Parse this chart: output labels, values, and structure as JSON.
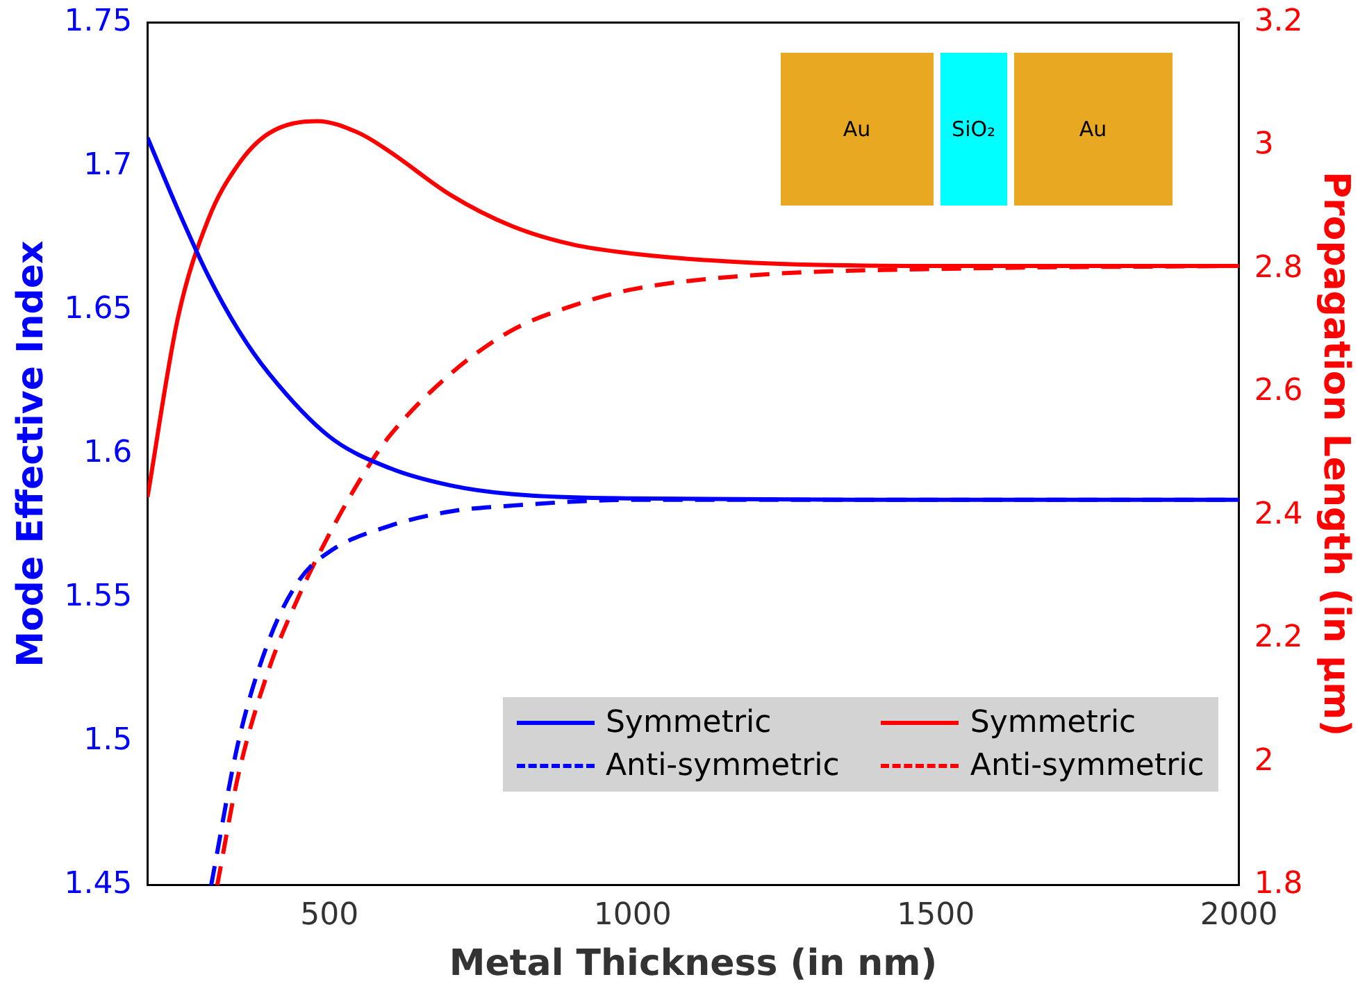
{
  "chart_data": {
    "type": "line",
    "xlabel": "Metal Thickness (in nm)",
    "ylabel": "Mode Effective Index",
    "y2label": "Propagation Length (in μm)",
    "xlim": [
      200,
      2000
    ],
    "xticks": [
      500,
      1000,
      1500,
      2000
    ],
    "ylim": [
      1.45,
      1.75
    ],
    "yticks": [
      1.45,
      1.5,
      1.55,
      1.6,
      1.65,
      1.7,
      1.75
    ],
    "y2lim": [
      1.8,
      3.2
    ],
    "y2ticks": [
      1.8,
      2,
      2.2,
      2.4,
      2.6,
      2.8,
      3,
      3.2
    ],
    "grid": false,
    "legend": "bottom right",
    "marker": "none",
    "annotations": [
      "Au",
      "SiO₂",
      "Au"
    ],
    "series": [
      {
        "name": "Symmetric",
        "color": "#0000ff",
        "line_style": "solid",
        "x": [
          200,
          250,
          300,
          350,
          400,
          500,
          600,
          700,
          800,
          1000,
          1500,
          2000
        ],
        "values": [
          1.71,
          1.685,
          1.662,
          1.643,
          1.628,
          1.606,
          1.595,
          1.589,
          1.586,
          1.5845,
          1.584,
          1.584
        ]
      },
      {
        "name": "Anti-symmetric",
        "color": "#0000ff",
        "line_style": "dashed",
        "x": [
          305,
          350,
          400,
          450,
          500,
          600,
          700,
          800,
          1000,
          1500,
          2000
        ],
        "values": [
          1.45,
          1.5,
          1.535,
          1.556,
          1.566,
          1.575,
          1.58,
          1.582,
          1.584,
          1.584,
          1.584
        ]
      },
      {
        "name": "Symmetric",
        "color": "#ff0000",
        "line_style": "solid",
        "axis": "y2",
        "x": [
          200,
          250,
          300,
          350,
          400,
          480,
          550,
          600,
          700,
          800,
          900,
          1000,
          1200,
          1500,
          2000
        ],
        "values": [
          2.43,
          2.72,
          2.88,
          2.97,
          3.02,
          3.04,
          3.02,
          2.99,
          2.92,
          2.87,
          2.84,
          2.825,
          2.81,
          2.805,
          2.805
        ]
      },
      {
        "name": "Anti-symmetric",
        "color": "#ff0000",
        "line_style": "dashed",
        "axis": "y2",
        "x": [
          315,
          350,
          400,
          450,
          500,
          558,
          600,
          700,
          800,
          900,
          1000,
          1200,
          1500,
          2000
        ],
        "values": [
          1.8,
          1.98,
          2.15,
          2.27,
          2.37,
          2.47,
          2.53,
          2.63,
          2.7,
          2.74,
          2.767,
          2.79,
          2.8,
          2.805
        ]
      }
    ]
  }
}
